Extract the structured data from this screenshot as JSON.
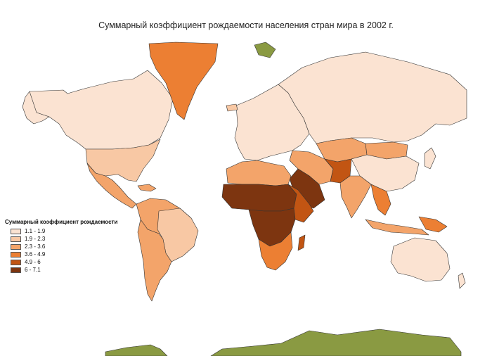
{
  "title": "Суммарный коэффициент рождаемости населения стран мира в 2002 г.",
  "legend": {
    "title": "Суммарный коэффициент рождаемости",
    "items": [
      {
        "label": "1.1 - 1.9",
        "color": "#fbe3d2"
      },
      {
        "label": "1.9 - 2.3",
        "color": "#f8c8a4"
      },
      {
        "label": "2.3 - 3.6",
        "color": "#f3a46a"
      },
      {
        "label": "3.6 - 4.9",
        "color": "#ec7f33"
      },
      {
        "label": "4.9 - 6",
        "color": "#c25513"
      },
      {
        "label": "6 - 7.1",
        "color": "#7d3510"
      }
    ]
  },
  "no_data_color": "#8a9a42"
}
